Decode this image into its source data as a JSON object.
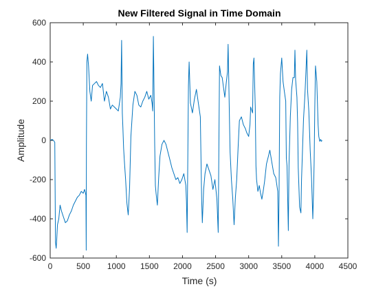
{
  "chart_data": {
    "type": "line",
    "title": "New Filtered Signal in Time Domain",
    "xlabel": "Time (s)",
    "ylabel": "Amplitude",
    "xlim": [
      0,
      4500
    ],
    "ylim": [
      -600,
      600
    ],
    "xticks": [
      0,
      500,
      1000,
      1500,
      2000,
      2500,
      3000,
      3500,
      4000,
      4500
    ],
    "yticks": [
      -600,
      -400,
      -200,
      0,
      200,
      400,
      600
    ],
    "xtick_labels": [
      "0",
      "500",
      "1000",
      "1500",
      "2000",
      "2500",
      "3000",
      "3500",
      "4000",
      "4500"
    ],
    "ytick_labels": [
      "-600",
      "-400",
      "-200",
      "0",
      "200",
      "400",
      "600"
    ],
    "grid": false,
    "colors": {
      "line": "#0072BD",
      "axis": "#262626",
      "background": "#ffffff"
    },
    "series": [
      {
        "values": [
          [
            0,
            0
          ],
          [
            30,
            5
          ],
          [
            50,
            0
          ],
          [
            70,
            -10
          ],
          [
            80,
            -520
          ],
          [
            90,
            -550
          ],
          [
            100,
            -500
          ],
          [
            110,
            -430
          ],
          [
            130,
            -400
          ],
          [
            150,
            -330
          ],
          [
            170,
            -360
          ],
          [
            200,
            -390
          ],
          [
            230,
            -420
          ],
          [
            260,
            -410
          ],
          [
            290,
            -380
          ],
          [
            320,
            -360
          ],
          [
            350,
            -330
          ],
          [
            380,
            -310
          ],
          [
            410,
            -290
          ],
          [
            440,
            -280
          ],
          [
            470,
            -260
          ],
          [
            500,
            -270
          ],
          [
            520,
            -250
          ],
          [
            540,
            -280
          ],
          [
            545,
            -560
          ],
          [
            548,
            -20
          ],
          [
            555,
            400
          ],
          [
            565,
            440
          ],
          [
            580,
            380
          ],
          [
            600,
            250
          ],
          [
            620,
            200
          ],
          [
            640,
            280
          ],
          [
            670,
            290
          ],
          [
            700,
            300
          ],
          [
            730,
            280
          ],
          [
            760,
            270
          ],
          [
            790,
            290
          ],
          [
            820,
            200
          ],
          [
            850,
            250
          ],
          [
            880,
            220
          ],
          [
            910,
            160
          ],
          [
            940,
            180
          ],
          [
            970,
            170
          ],
          [
            1000,
            160
          ],
          [
            1030,
            150
          ],
          [
            1060,
            220
          ],
          [
            1070,
            290
          ],
          [
            1080,
            510
          ],
          [
            1090,
            140
          ],
          [
            1100,
            60
          ],
          [
            1110,
            -40
          ],
          [
            1120,
            -100
          ],
          [
            1140,
            -200
          ],
          [
            1160,
            -320
          ],
          [
            1180,
            -380
          ],
          [
            1200,
            -240
          ],
          [
            1220,
            20
          ],
          [
            1250,
            180
          ],
          [
            1280,
            250
          ],
          [
            1310,
            230
          ],
          [
            1340,
            180
          ],
          [
            1370,
            170
          ],
          [
            1400,
            200
          ],
          [
            1430,
            220
          ],
          [
            1460,
            250
          ],
          [
            1490,
            210
          ],
          [
            1520,
            230
          ],
          [
            1540,
            190
          ],
          [
            1550,
            150
          ],
          [
            1560,
            530
          ],
          [
            1570,
            250
          ],
          [
            1580,
            -20
          ],
          [
            1590,
            -230
          ],
          [
            1600,
            -270
          ],
          [
            1620,
            -330
          ],
          [
            1640,
            -190
          ],
          [
            1660,
            -80
          ],
          [
            1690,
            -20
          ],
          [
            1720,
            0
          ],
          [
            1750,
            -20
          ],
          [
            1780,
            -60
          ],
          [
            1810,
            -100
          ],
          [
            1840,
            -140
          ],
          [
            1870,
            -170
          ],
          [
            1900,
            -200
          ],
          [
            1930,
            -190
          ],
          [
            1960,
            -220
          ],
          [
            1990,
            -200
          ],
          [
            2020,
            -170
          ],
          [
            2050,
            -230
          ],
          [
            2060,
            -310
          ],
          [
            2070,
            -470
          ],
          [
            2080,
            -120
          ],
          [
            2090,
            280
          ],
          [
            2100,
            400
          ],
          [
            2120,
            190
          ],
          [
            2150,
            140
          ],
          [
            2180,
            210
          ],
          [
            2210,
            260
          ],
          [
            2240,
            190
          ],
          [
            2270,
            120
          ],
          [
            2290,
            -300
          ],
          [
            2300,
            -420
          ],
          [
            2320,
            -250
          ],
          [
            2340,
            -170
          ],
          [
            2370,
            -120
          ],
          [
            2400,
            -150
          ],
          [
            2430,
            -180
          ],
          [
            2460,
            -250
          ],
          [
            2490,
            -200
          ],
          [
            2520,
            -300
          ],
          [
            2540,
            -470
          ],
          [
            2560,
            380
          ],
          [
            2580,
            330
          ],
          [
            2600,
            320
          ],
          [
            2620,
            270
          ],
          [
            2640,
            220
          ],
          [
            2660,
            290
          ],
          [
            2680,
            350
          ],
          [
            2690,
            490
          ],
          [
            2700,
            300
          ],
          [
            2710,
            100
          ],
          [
            2720,
            -60
          ],
          [
            2740,
            -200
          ],
          [
            2760,
            -300
          ],
          [
            2780,
            -430
          ],
          [
            2800,
            -290
          ],
          [
            2820,
            -200
          ],
          [
            2840,
            -40
          ],
          [
            2860,
            100
          ],
          [
            2890,
            120
          ],
          [
            2920,
            80
          ],
          [
            2950,
            60
          ],
          [
            2970,
            40
          ],
          [
            3000,
            20
          ],
          [
            3020,
            80
          ],
          [
            3030,
            170
          ],
          [
            3060,
            140
          ],
          [
            3070,
            390
          ],
          [
            3080,
            420
          ],
          [
            3090,
            300
          ],
          [
            3100,
            170
          ],
          [
            3110,
            -130
          ],
          [
            3120,
            -200
          ],
          [
            3140,
            -260
          ],
          [
            3160,
            -230
          ],
          [
            3180,
            -270
          ],
          [
            3200,
            -300
          ],
          [
            3220,
            -260
          ],
          [
            3240,
            -210
          ],
          [
            3270,
            -120
          ],
          [
            3300,
            -80
          ],
          [
            3320,
            -50
          ],
          [
            3350,
            -110
          ],
          [
            3380,
            -170
          ],
          [
            3410,
            -190
          ],
          [
            3440,
            -260
          ],
          [
            3450,
            -540
          ],
          [
            3460,
            -280
          ],
          [
            3470,
            220
          ],
          [
            3480,
            340
          ],
          [
            3500,
            420
          ],
          [
            3520,
            300
          ],
          [
            3540,
            250
          ],
          [
            3560,
            200
          ],
          [
            3570,
            -90
          ],
          [
            3580,
            -130
          ],
          [
            3600,
            -460
          ],
          [
            3610,
            -120
          ],
          [
            3630,
            120
          ],
          [
            3650,
            260
          ],
          [
            3670,
            320
          ],
          [
            3690,
            320
          ],
          [
            3700,
            460
          ],
          [
            3710,
            310
          ],
          [
            3730,
            220
          ],
          [
            3740,
            90
          ],
          [
            3750,
            -140
          ],
          [
            3770,
            -340
          ],
          [
            3790,
            -370
          ],
          [
            3800,
            -200
          ],
          [
            3830,
            110
          ],
          [
            3850,
            230
          ],
          [
            3880,
            460
          ],
          [
            3890,
            260
          ],
          [
            3910,
            150
          ],
          [
            3930,
            -50
          ],
          [
            3950,
            -190
          ],
          [
            3970,
            -400
          ],
          [
            3980,
            -270
          ],
          [
            3990,
            -120
          ],
          [
            4000,
            170
          ],
          [
            4010,
            380
          ],
          [
            4030,
            300
          ],
          [
            4050,
            80
          ],
          [
            4060,
            20
          ],
          [
            4075,
            -5
          ],
          [
            4090,
            5
          ],
          [
            4100,
            -5
          ],
          [
            4110,
            0
          ]
        ]
      }
    ]
  }
}
